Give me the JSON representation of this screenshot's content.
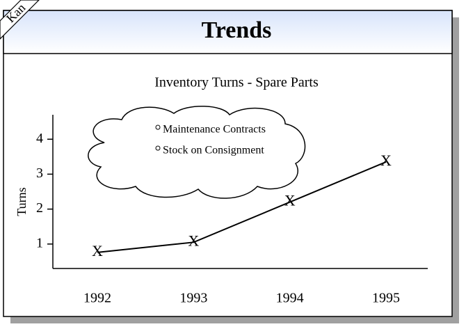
{
  "banner": "Kan",
  "header": {
    "title": "Trends"
  },
  "chart_data": {
    "type": "line",
    "title": "Inventory Turns - Spare Parts",
    "y_label": "Turns",
    "categories": [
      "1992",
      "1993",
      "1994",
      "1995"
    ],
    "values": [
      0.76,
      1.05,
      2.2,
      3.35
    ],
    "color": "#000000",
    "marker": "X",
    "ylim": [
      0.3,
      4.7
    ],
    "yticks": [
      1,
      2,
      3,
      4
    ],
    "annotations": [
      "Maintenance Contracts",
      "Stock on Consignment"
    ]
  }
}
